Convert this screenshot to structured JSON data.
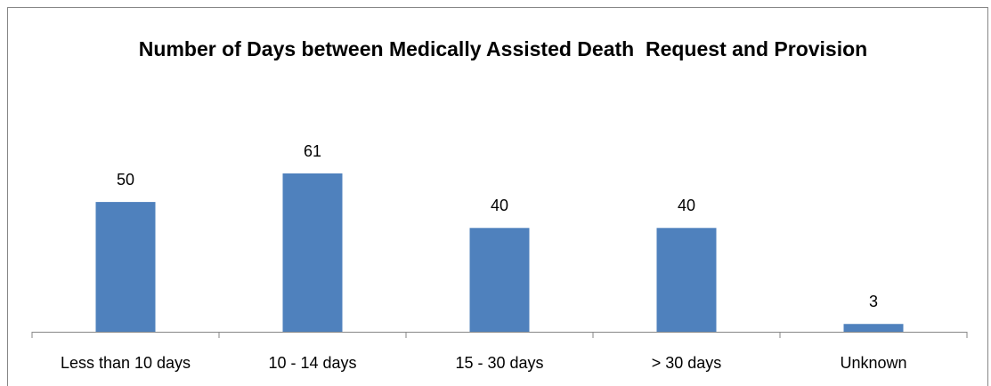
{
  "chart_data": {
    "type": "bar",
    "title": "Number of Days between Medically Assisted Death  Request and Provision",
    "categories": [
      "Less than 10 days",
      "10 - 14 days",
      "15 - 30 days",
      "> 30 days",
      "Unknown"
    ],
    "values": [
      50,
      61,
      40,
      40,
      3
    ],
    "color": "#4f81bd"
  }
}
